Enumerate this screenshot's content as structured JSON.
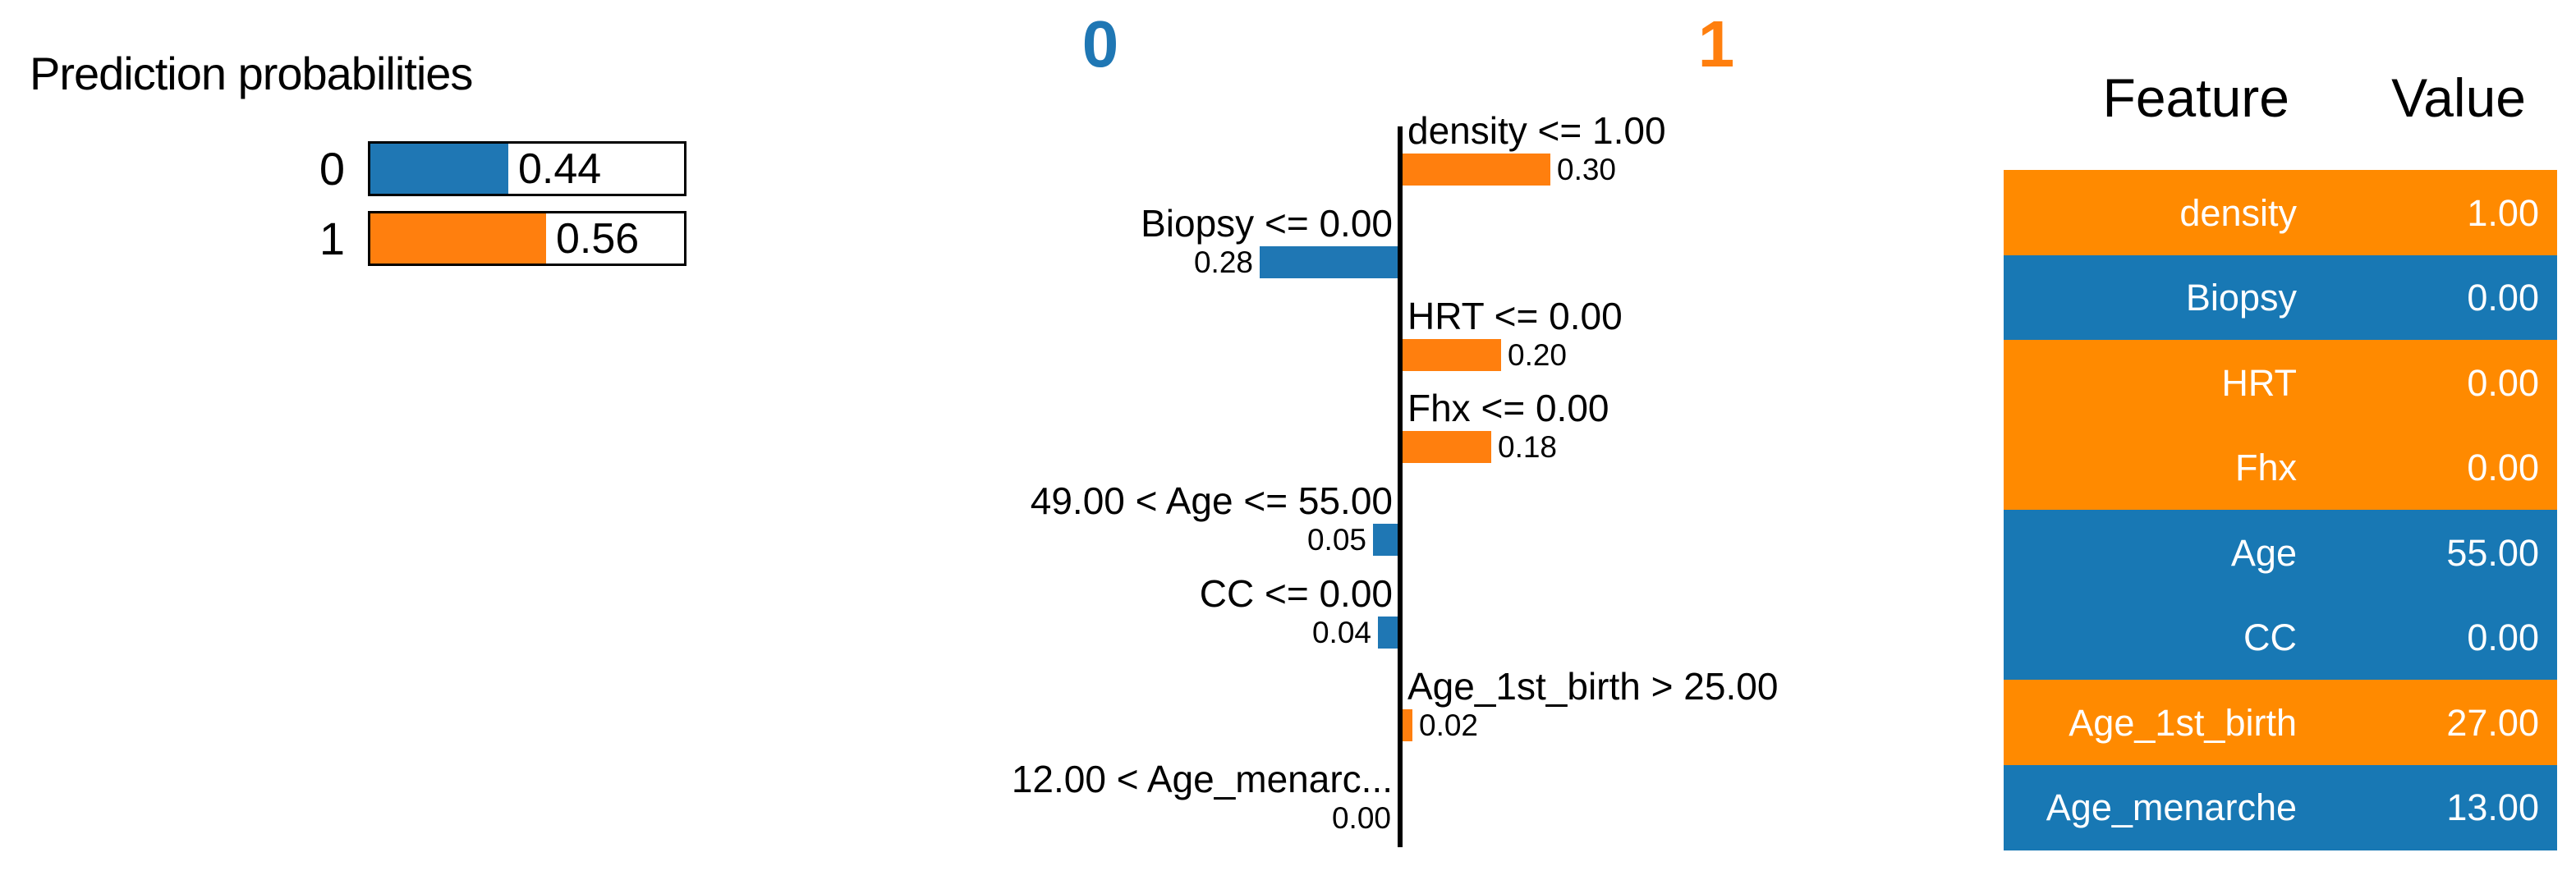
{
  "colors": {
    "bar_blue": "#1f77b4",
    "bar_orange": "#ff7f0e",
    "table_blue": "#1878b4",
    "table_orange": "#ff8a00",
    "axis": "#000000"
  },
  "prediction": {
    "title": "Prediction probabilities",
    "rows": [
      {
        "label": "0",
        "value": "0.44",
        "fraction": 0.44,
        "color": "bar_blue"
      },
      {
        "label": "1",
        "value": "0.56",
        "fraction": 0.56,
        "color": "bar_orange"
      }
    ]
  },
  "explanation": {
    "class_left": "0",
    "class_right": "1",
    "bars": [
      {
        "label": "density <= 1.00",
        "value": "0.30",
        "weight": 0.3,
        "side": "right"
      },
      {
        "label": "Biopsy <= 0.00",
        "value": "0.28",
        "weight": 0.28,
        "side": "left"
      },
      {
        "label": "HRT <= 0.00",
        "value": "0.20",
        "weight": 0.2,
        "side": "right"
      },
      {
        "label": "Fhx <= 0.00",
        "value": "0.18",
        "weight": 0.18,
        "side": "right"
      },
      {
        "label": "49.00 < Age <= 55.00",
        "value": "0.05",
        "weight": 0.05,
        "side": "left"
      },
      {
        "label": "CC <= 0.00",
        "value": "0.04",
        "weight": 0.04,
        "side": "left"
      },
      {
        "label": "Age_1st_birth > 25.00",
        "value": "0.02",
        "weight": 0.02,
        "side": "right"
      },
      {
        "label": "12.00 < Age_menarc...",
        "value": "0.00",
        "weight": 0.0,
        "side": "left"
      }
    ]
  },
  "feature_table": {
    "headers": [
      "Feature",
      "Value"
    ],
    "rows": [
      {
        "feature": "density",
        "value": "1.00",
        "color": "table_orange"
      },
      {
        "feature": "Biopsy",
        "value": "0.00",
        "color": "table_blue"
      },
      {
        "feature": "HRT",
        "value": "0.00",
        "color": "table_orange"
      },
      {
        "feature": "Fhx",
        "value": "0.00",
        "color": "table_orange"
      },
      {
        "feature": "Age",
        "value": "55.00",
        "color": "table_blue"
      },
      {
        "feature": "CC",
        "value": "0.00",
        "color": "table_blue"
      },
      {
        "feature": "Age_1st_birth",
        "value": "27.00",
        "color": "table_orange"
      },
      {
        "feature": "Age_menarche",
        "value": "13.00",
        "color": "table_blue"
      }
    ]
  },
  "chart_data": [
    {
      "type": "bar",
      "title": "Prediction probabilities",
      "orientation": "horizontal",
      "categories": [
        "0",
        "1"
      ],
      "values": [
        0.44,
        0.56
      ],
      "data_labels": [
        "0.44",
        "0.56"
      ],
      "colors": [
        "#1f77b4",
        "#ff7f0e"
      ],
      "xlim": [
        0,
        1
      ],
      "grid": false
    },
    {
      "type": "bar",
      "orientation": "horizontal",
      "class_labels": [
        "0",
        "1"
      ],
      "class_label_colors": [
        "#1f77b4",
        "#ff7f0e"
      ],
      "categories": [
        "density <= 1.00",
        "Biopsy <= 0.00",
        "HRT <= 0.00",
        "Fhx <= 0.00",
        "49.00 < Age <= 55.00",
        "CC <= 0.00",
        "Age_1st_birth > 25.00",
        "12.00 < Age_menarc..."
      ],
      "values": [
        0.3,
        -0.28,
        0.2,
        0.18,
        -0.05,
        -0.04,
        0.02,
        0.0
      ],
      "data_labels": [
        "0.30",
        "0.28",
        "0.20",
        "0.18",
        "0.05",
        "0.04",
        "0.02",
        "0.00"
      ],
      "positive_color": "#ff7f0e",
      "negative_color": "#1f77b4",
      "xlim": [
        -0.35,
        0.35
      ],
      "grid": false,
      "legend_position": "top"
    },
    {
      "type": "table",
      "title": "",
      "headers": [
        "Feature",
        "Value"
      ],
      "rows": [
        [
          "density",
          "1.00"
        ],
        [
          "Biopsy",
          "0.00"
        ],
        [
          "HRT",
          "0.00"
        ],
        [
          "Fhx",
          "0.00"
        ],
        [
          "Age",
          "55.00"
        ],
        [
          "CC",
          "0.00"
        ],
        [
          "Age_1st_birth",
          "27.00"
        ],
        [
          "Age_menarche",
          "13.00"
        ]
      ],
      "row_colors": [
        "#ff8a00",
        "#1878b4",
        "#ff8a00",
        "#ff8a00",
        "#1878b4",
        "#1878b4",
        "#ff8a00",
        "#1878b4"
      ]
    }
  ]
}
